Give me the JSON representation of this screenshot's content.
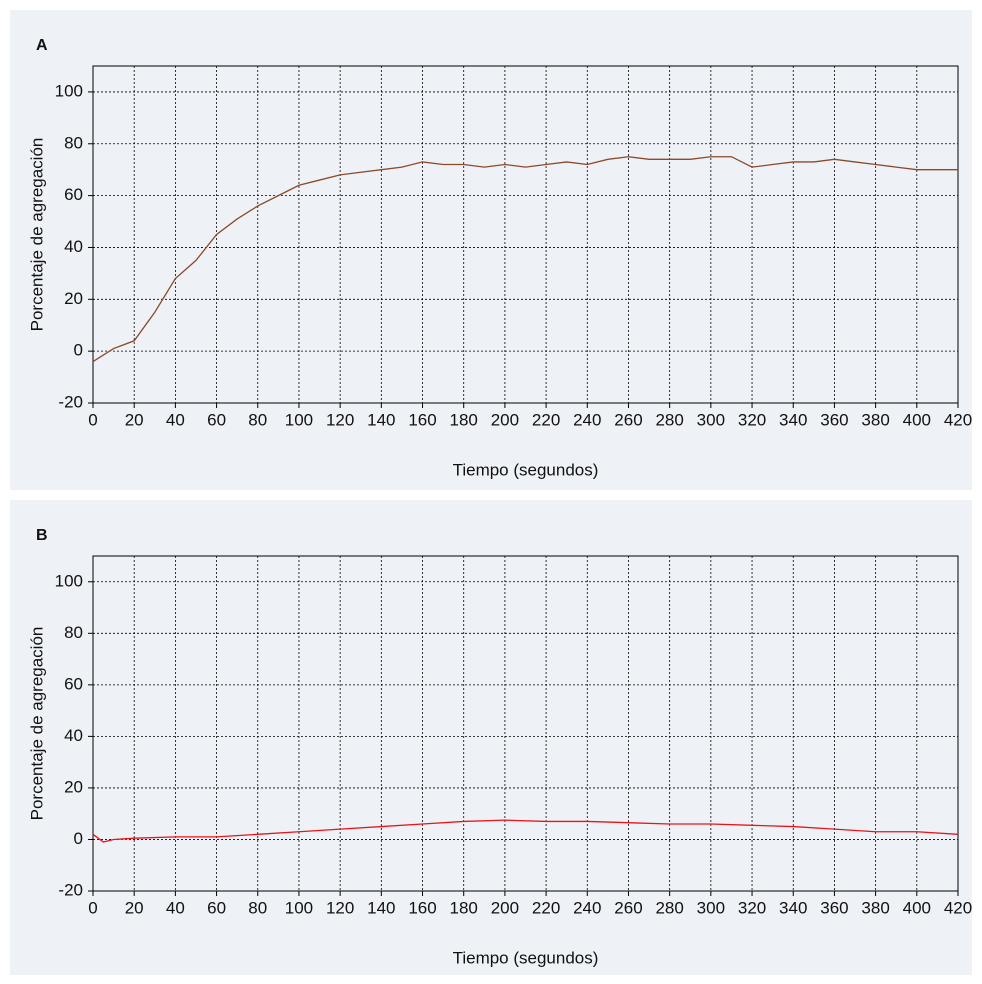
{
  "chart_data": [
    {
      "type": "line",
      "title": "A",
      "xlabel": "Tiempo (segundos)",
      "ylabel": "Porcentaje de agregación",
      "x": [
        0,
        10,
        20,
        30,
        40,
        50,
        60,
        70,
        80,
        90,
        100,
        110,
        120,
        130,
        140,
        150,
        160,
        170,
        180,
        190,
        200,
        210,
        220,
        230,
        240,
        250,
        260,
        270,
        280,
        290,
        300,
        310,
        320,
        330,
        340,
        350,
        360,
        370,
        380,
        390,
        400,
        410,
        420
      ],
      "values": [
        -4,
        1,
        4,
        15,
        28,
        35,
        45,
        51,
        56,
        60,
        64,
        66,
        68,
        69,
        70,
        71,
        73,
        72,
        72,
        71,
        72,
        71,
        72,
        73,
        72,
        74,
        75,
        74,
        74,
        74,
        75,
        75,
        71,
        72,
        73,
        73,
        74,
        73,
        72,
        71,
        70,
        70,
        70
      ],
      "color": "#8b4a2b",
      "xlim": [
        0,
        420
      ],
      "xticks": [
        0,
        20,
        40,
        60,
        80,
        100,
        120,
        140,
        160,
        180,
        200,
        220,
        240,
        260,
        280,
        300,
        320,
        340,
        360,
        380,
        400,
        420
      ],
      "ylim": [
        -20,
        110
      ],
      "yticks": [
        -20,
        0,
        20,
        40,
        60,
        80,
        100
      ],
      "grid": true
    },
    {
      "type": "line",
      "title": "B",
      "xlabel": "Tiempo (segundos)",
      "ylabel": "Porcentaje de agregación",
      "x": [
        0,
        5,
        10,
        20,
        40,
        60,
        80,
        100,
        120,
        140,
        160,
        180,
        200,
        220,
        240,
        260,
        280,
        300,
        320,
        340,
        360,
        380,
        400,
        420
      ],
      "values": [
        2,
        -1,
        0,
        0.5,
        1,
        1,
        2,
        3,
        4,
        5,
        6,
        7,
        7.5,
        7,
        7,
        6.5,
        6,
        6,
        5.5,
        5,
        4,
        3,
        3,
        2
      ],
      "color": "#e8151b",
      "xlim": [
        0,
        420
      ],
      "xticks": [
        0,
        20,
        40,
        60,
        80,
        100,
        120,
        140,
        160,
        180,
        200,
        220,
        240,
        260,
        280,
        300,
        320,
        340,
        360,
        380,
        400,
        420
      ],
      "ylim": [
        -20,
        110
      ],
      "yticks": [
        -20,
        0,
        20,
        40,
        60,
        80,
        100
      ],
      "grid": true
    }
  ]
}
